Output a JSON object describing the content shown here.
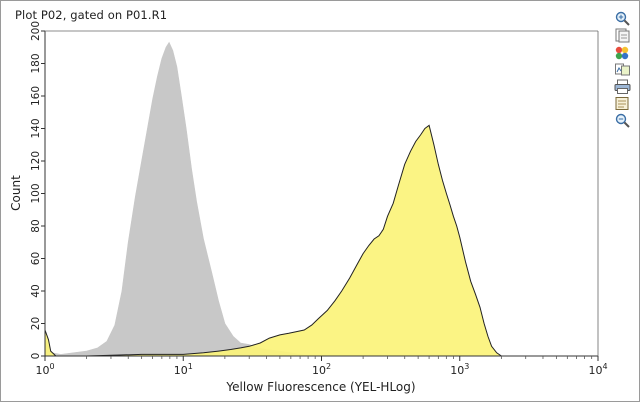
{
  "window": {
    "title": "Plot P02, gated on P01.R1"
  },
  "toolbar": {
    "icons": [
      "zoom-in-icon",
      "copy-plot-icon",
      "color-palette-icon",
      "overlay-icon",
      "print-icon",
      "export-icon",
      "zoom-out-icon"
    ]
  },
  "chart_data": {
    "type": "area",
    "title": "Plot P02, gated on P01.R1",
    "xlabel": "Yellow Fluorescence (YEL-HLog)",
    "ylabel": "Count",
    "xscale": "log",
    "xlim": [
      1,
      10000
    ],
    "ylim": [
      0,
      200
    ],
    "x_ticks": [
      {
        "value": 1,
        "base": "10",
        "exp": "0"
      },
      {
        "value": 10,
        "base": "10",
        "exp": "1"
      },
      {
        "value": 100,
        "base": "10",
        "exp": "2"
      },
      {
        "value": 1000,
        "base": "10",
        "exp": "3"
      },
      {
        "value": 10000,
        "base": "10",
        "exp": "4"
      }
    ],
    "y_ticks": [
      0,
      20,
      40,
      60,
      80,
      100,
      120,
      140,
      160,
      180,
      200
    ],
    "series": [
      {
        "color": "#c8c8c8",
        "edge": "#c8c8c8",
        "x": [
          1,
          1.12,
          1.3,
          1.6,
          2.0,
          2.4,
          2.8,
          3.2,
          3.6,
          4.0,
          4.5,
          5.0,
          5.5,
          6.0,
          6.5,
          7.0,
          7.5,
          7.9,
          8.4,
          9.0,
          9.7,
          10.5,
          11.5,
          12.5,
          14,
          16,
          18,
          20,
          23,
          26,
          30,
          35,
          40,
          50,
          60,
          70,
          80
        ],
        "y": [
          10,
          2,
          1,
          2,
          3,
          5,
          9,
          19,
          40,
          70,
          98,
          120,
          140,
          158,
          172,
          183,
          190,
          193,
          188,
          178,
          160,
          140,
          115,
          95,
          72,
          52,
          34,
          20,
          12,
          8,
          7,
          5,
          4,
          3,
          2,
          1,
          0
        ]
      },
      {
        "color": "#fbf37a",
        "edge": "#222222",
        "x": [
          1,
          1.06,
          1.1,
          1.2,
          2,
          5,
          10,
          14,
          18,
          22,
          26,
          30,
          36,
          42,
          50,
          58,
          66,
          75,
          85,
          95,
          110,
          125,
          140,
          160,
          180,
          200,
          220,
          240,
          260,
          280,
          300,
          330,
          360,
          400,
          440,
          480,
          520,
          560,
          600,
          650,
          700,
          750,
          800,
          850,
          900,
          950,
          1000,
          1100,
          1200,
          1300,
          1400,
          1500,
          1600,
          1700,
          1850,
          2000
        ],
        "y": [
          16,
          10,
          3,
          0,
          0,
          1,
          1,
          2,
          3,
          4,
          5,
          6,
          8,
          11,
          13,
          14,
          15,
          16,
          19,
          23,
          28,
          34,
          40,
          48,
          56,
          63,
          68,
          72,
          74,
          78,
          86,
          94,
          105,
          118,
          126,
          132,
          136,
          140,
          142,
          130,
          118,
          108,
          100,
          93,
          86,
          80,
          73,
          58,
          46,
          38,
          30,
          20,
          12,
          6,
          2,
          0
        ]
      }
    ]
  }
}
